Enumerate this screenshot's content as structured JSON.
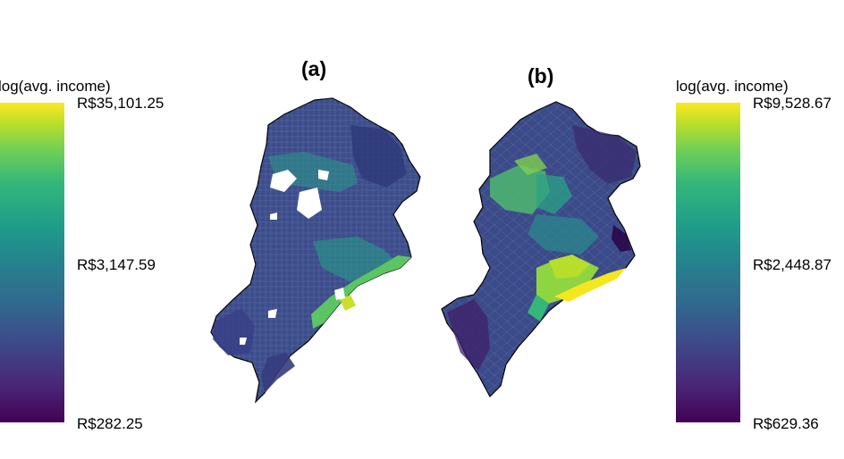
{
  "panels": [
    {
      "label": "(a)"
    },
    {
      "label": "(b)"
    }
  ],
  "legends": [
    {
      "title": "log(avg. income)",
      "max": "R$35,101.25",
      "mid": "R$3,147.59",
      "min": "R$282.25"
    },
    {
      "title": "log(avg. income)",
      "max": "R$9,528.67",
      "mid": "R$2,448.87",
      "min": "R$629.36"
    }
  ],
  "colors": {
    "viridis_low": "#440154",
    "viridis_mid": "#21918c",
    "viridis_high": "#fde725",
    "boundary": "#000000"
  }
}
